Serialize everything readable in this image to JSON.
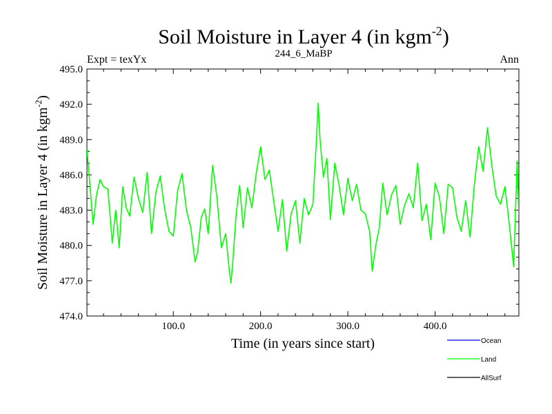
{
  "chart_data": {
    "type": "line",
    "title": "Soil Moisture in Layer 4 (in kgm",
    "title_sup": "-2",
    "title_close": ")",
    "subtitle_left": "Expt = texYx",
    "subtitle_center": "244_6_MaBP",
    "subtitle_right": "Ann",
    "xlabel": "Time (in years since start)",
    "ylabel": "Soil Moisture in Layer 4 (in kgm",
    "ylabel_sup": "-2",
    "ylabel_close": ")",
    "xlim": [
      1,
      496
    ],
    "ylim": [
      474.0,
      495.0
    ],
    "xticks": [
      100,
      200,
      300,
      400
    ],
    "xtick_labels": [
      "100.0",
      "200.0",
      "300.0",
      "400.0"
    ],
    "yticks": [
      474,
      477,
      480,
      483,
      486,
      489,
      492,
      495
    ],
    "ytick_labels": [
      "474.0",
      "477.0",
      "480.0",
      "483.0",
      "486.0",
      "489.0",
      "492.0",
      "495.0"
    ],
    "grid": false,
    "legend_position": "bottom-right",
    "series": [
      {
        "name": "Ocean",
        "color": "#0000ff",
        "x": [],
        "values": []
      },
      {
        "name": "Land",
        "color": "#00ff00",
        "x": [
          1,
          4,
          8,
          12,
          16,
          20,
          25,
          30,
          34,
          38,
          42,
          46,
          50,
          55,
          60,
          65,
          70,
          75,
          80,
          85,
          90,
          95,
          100,
          105,
          110,
          115,
          120,
          125,
          128,
          132,
          136,
          140,
          145,
          150,
          155,
          160,
          164,
          166,
          168,
          172,
          176,
          180,
          185,
          190,
          195,
          200,
          205,
          210,
          215,
          220,
          225,
          230,
          235,
          240,
          245,
          250,
          255,
          260,
          264,
          266,
          268,
          272,
          276,
          280,
          285,
          290,
          295,
          300,
          305,
          310,
          315,
          320,
          325,
          328,
          332,
          336,
          340,
          345,
          350,
          355,
          360,
          365,
          370,
          375,
          380,
          385,
          390,
          395,
          400,
          405,
          410,
          415,
          420,
          425,
          430,
          435,
          440,
          445,
          450,
          455,
          460,
          465,
          470,
          475,
          480,
          485,
          490,
          494,
          496
        ],
        "values": [
          488.2,
          485.5,
          481.8,
          484.3,
          485.6,
          485.0,
          484.8,
          480.2,
          483.0,
          479.8,
          485.0,
          483.2,
          482.5,
          485.8,
          484.0,
          482.8,
          486.2,
          481.0,
          484.5,
          485.9,
          483.1,
          481.2,
          480.8,
          484.7,
          486.1,
          483.0,
          481.5,
          478.6,
          479.5,
          482.4,
          483.1,
          481.0,
          486.8,
          484.1,
          479.8,
          481.0,
          478.0,
          476.8,
          478.5,
          482.7,
          485.1,
          481.5,
          484.9,
          483.2,
          486.1,
          488.4,
          485.6,
          486.4,
          483.8,
          481.2,
          483.9,
          479.5,
          482.7,
          483.8,
          480.2,
          484.0,
          482.6,
          483.5,
          489.0,
          492.1,
          489.1,
          485.8,
          487.4,
          482.2,
          487.0,
          485.1,
          482.6,
          485.7,
          483.8,
          485.2,
          483.0,
          482.7,
          481.2,
          477.8,
          480.0,
          481.5,
          485.3,
          482.6,
          484.3,
          485.1,
          481.8,
          483.4,
          484.4,
          483.2,
          487.0,
          482.1,
          483.5,
          480.5,
          485.3,
          484.1,
          481.0,
          485.2,
          484.9,
          482.4,
          481.2,
          483.8,
          480.7,
          485.2,
          488.4,
          486.3,
          490.0,
          486.8,
          484.2,
          483.5,
          485.0,
          481.8,
          478.2,
          487.2,
          482.6
        ]
      },
      {
        "name": "AllSurf",
        "color": "#000000",
        "x": [],
        "values": []
      }
    ]
  }
}
